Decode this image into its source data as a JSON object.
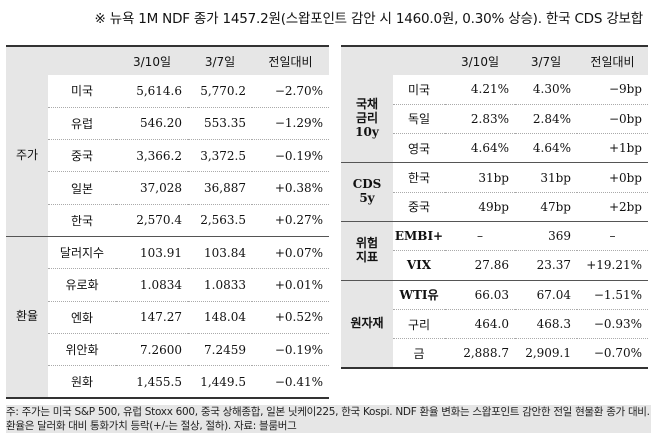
{
  "headline": "※ 뉴욕 1M NDF 종가 1457.2원(스왑포인트 감안 시 1460.0원, 0.30% 상승). 한국 CDS 강보합",
  "left": {
    "headers": [
      "3/10일",
      "3/7일",
      "전일대비"
    ],
    "groups": [
      {
        "category": "주가",
        "rows": [
          {
            "name": "미국",
            "v1": "5,614.6",
            "v2": "5,770.2",
            "chg": "−2.70%"
          },
          {
            "name": "유럽",
            "v1": "546.20",
            "v2": "553.35",
            "chg": "−1.29%"
          },
          {
            "name": "중국",
            "v1": "3,366.2",
            "v2": "3,372.5",
            "chg": "−0.19%"
          },
          {
            "name": "일본",
            "v1": "37,028",
            "v2": "36,887",
            "chg": "+0.38%"
          },
          {
            "name": "한국",
            "v1": "2,570.4",
            "v2": "2,563.5",
            "chg": "+0.27%"
          }
        ]
      },
      {
        "category": "환율",
        "rows": [
          {
            "name": "달러지수",
            "v1": "103.91",
            "v2": "103.84",
            "chg": "+0.07%"
          },
          {
            "name": "유로화",
            "v1": "1.0834",
            "v2": "1.0833",
            "chg": "+0.01%"
          },
          {
            "name": "엔화",
            "v1": "147.27",
            "v2": "148.04",
            "chg": "+0.52%"
          },
          {
            "name": "위안화",
            "v1": "7.2600",
            "v2": "7.2459",
            "chg": "−0.19%"
          },
          {
            "name": "원화",
            "v1": "1,455.5",
            "v2": "1,449.5",
            "chg": "−0.41%"
          }
        ]
      }
    ]
  },
  "right": {
    "headers": [
      "3/10일",
      "3/7일",
      "전일대비"
    ],
    "groups": [
      {
        "category": "국채\n금리\n10y",
        "rows": [
          {
            "name": "미국",
            "v1": "4.21%",
            "v2": "4.30%",
            "chg": "−9bp"
          },
          {
            "name": "독일",
            "v1": "2.83%",
            "v2": "2.84%",
            "chg": "−0bp"
          },
          {
            "name": "영국",
            "v1": "4.64%",
            "v2": "4.64%",
            "chg": "+1bp"
          }
        ]
      },
      {
        "category": "CDS\n5y",
        "rows": [
          {
            "name": "한국",
            "v1": "31bp",
            "v2": "31bp",
            "chg": "+0bp"
          },
          {
            "name": "중국",
            "v1": "49bp",
            "v2": "47bp",
            "chg": "+2bp"
          }
        ]
      },
      {
        "category": "위험\n지표",
        "rows": [
          {
            "name": "EMBI+",
            "v1": "–",
            "v2": "369",
            "chg": "–"
          },
          {
            "name": "VIX",
            "v1": "27.86",
            "v2": "23.37",
            "chg": "+19.21%"
          }
        ]
      },
      {
        "category": "원자재",
        "rows": [
          {
            "name": "WTI유",
            "v1": "66.03",
            "v2": "67.04",
            "chg": "−1.51%"
          },
          {
            "name": "구리",
            "v1": "464.0",
            "v2": "468.3",
            "chg": "−0.93%"
          },
          {
            "name": "금",
            "v1": "2,888.7",
            "v2": "2,909.1",
            "chg": "−0.70%"
          }
        ]
      }
    ]
  },
  "footnote": "주: 주가는 미국 S&P 500, 유럽 Stoxx 600, 중국 상해종합, 일본 닛케이225, 한국 Kospi. NDF 환율 변화는 스왑포인트 감안한 전일 현물환 종가 대비. 환율은 달러화 대비 통화가치 등락(+/-는 절상, 절하). 자료: 블룸버그"
}
